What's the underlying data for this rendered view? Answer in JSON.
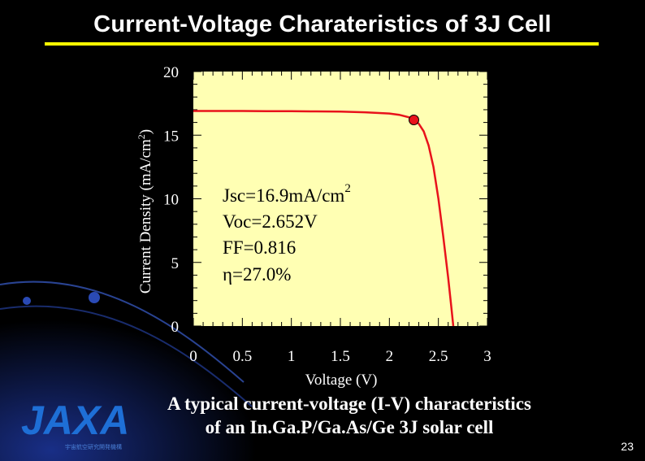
{
  "slide": {
    "title": "Current-Voltage Charateristics of 3J Cell",
    "caption_line1": "A typical current-voltage (I-V) characteristics",
    "caption_line2": "of an In.Ga.P/Ga.As/Ge 3J solar cell",
    "page_number": "23",
    "logo_text": "JAXA",
    "logo_subtext": "宇宙航空研究開発機構",
    "colors": {
      "background": "#000000",
      "title_rule": "#ffff00",
      "plot_bg": "#ffffb3",
      "curve": "#e8121b",
      "logo": "#1e6fd6"
    }
  },
  "chart_data": {
    "type": "line",
    "xlabel": "Voltage (V)",
    "ylabel_main": "Current Density (mA/cm",
    "ylabel_sup": "2",
    "ylabel_close": ")",
    "xlim": [
      0,
      3
    ],
    "ylim": [
      0,
      20
    ],
    "xticks": [
      "0",
      "0.5",
      "1",
      "1.5",
      "2",
      "2.5",
      "3"
    ],
    "yticks": [
      "0",
      "5",
      "10",
      "15",
      "20"
    ],
    "grid": false,
    "series": [
      {
        "x": [
          0,
          0.25,
          0.5,
          0.75,
          1.0,
          1.25,
          1.5,
          1.75,
          2.0,
          2.1,
          2.2,
          2.25,
          2.3,
          2.35,
          2.4,
          2.45,
          2.5,
          2.55,
          2.6,
          2.63,
          2.652
        ],
        "y": [
          16.9,
          16.9,
          16.9,
          16.89,
          16.88,
          16.87,
          16.85,
          16.8,
          16.7,
          16.6,
          16.4,
          16.2,
          15.9,
          15.3,
          14.2,
          12.5,
          10.0,
          7.0,
          3.8,
          1.6,
          0
        ]
      }
    ],
    "marker": {
      "x": 2.25,
      "y": 16.2
    },
    "annotations": {
      "jsc_label": "Jsc=16.9mA/cm",
      "jsc_sup": "2",
      "voc": "Voc=2.652V",
      "ff": "FF=0.816",
      "eta": "η=27.0%"
    }
  }
}
